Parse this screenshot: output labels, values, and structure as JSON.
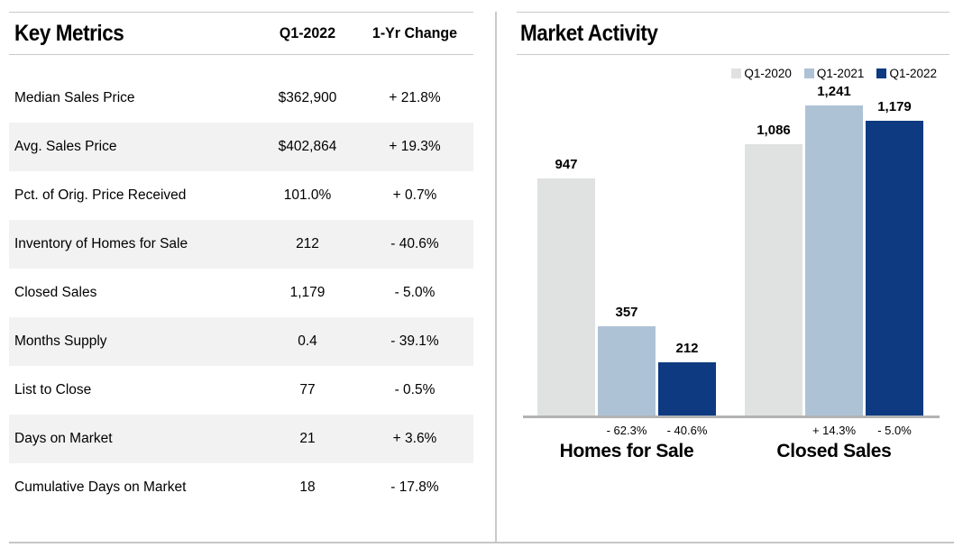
{
  "left_panel": {
    "title": "Key Metrics",
    "columns": {
      "period": "Q1-2022",
      "change": "1-Yr Change"
    },
    "rows": [
      {
        "label": "Median Sales Price",
        "value": "$362,900",
        "change": "+ 21.8%"
      },
      {
        "label": "Avg. Sales Price",
        "value": "$402,864",
        "change": "+ 19.3%"
      },
      {
        "label": "Pct. of Orig. Price Received",
        "value": "101.0%",
        "change": "+ 0.7%"
      },
      {
        "label": "Inventory of Homes for Sale",
        "value": "212",
        "change": "- 40.6%"
      },
      {
        "label": "Closed Sales",
        "value": "1,179",
        "change": "- 5.0%"
      },
      {
        "label": "Months Supply",
        "value": "0.4",
        "change": "- 39.1%"
      },
      {
        "label": "List to Close",
        "value": "77",
        "change": "- 0.5%"
      },
      {
        "label": "Days on Market",
        "value": "21",
        "change": "+ 3.6%"
      },
      {
        "label": "Cumulative Days on Market",
        "value": "18",
        "change": "- 17.8%"
      }
    ]
  },
  "right_panel": {
    "title": "Market Activity"
  },
  "chart_data": {
    "type": "bar",
    "title": "Market Activity",
    "categories": [
      "Homes for Sale",
      "Closed Sales"
    ],
    "series": [
      {
        "name": "Q1-2020",
        "color": "#dfe2e0",
        "values": [
          947,
          1086
        ],
        "value_labels": [
          "947",
          "1,086"
        ],
        "change_labels": [
          "",
          ""
        ]
      },
      {
        "name": "Q1-2021",
        "color": "#aec2d5",
        "values": [
          357,
          1241
        ],
        "value_labels": [
          "357",
          "1,241"
        ],
        "change_labels": [
          "- 62.3%",
          "+ 14.3%"
        ]
      },
      {
        "name": "Q1-2022",
        "color": "#0d3a80",
        "values": [
          212,
          1179
        ],
        "value_labels": [
          "212",
          "1,179"
        ],
        "change_labels": [
          "- 40.6%",
          "- 5.0%"
        ]
      }
    ],
    "ylim": [
      0,
      1241
    ],
    "legend_position": "top-right",
    "grid": false,
    "value_labels_shown": true
  },
  "colors": {
    "q1_2020": "#dfe2e0",
    "q1_2021": "#aec2d5",
    "q1_2022": "#0d3a80",
    "row_stripe": "#f2f2f2",
    "rule": "#c9c9c9",
    "axis": "#b3b3b3"
  }
}
